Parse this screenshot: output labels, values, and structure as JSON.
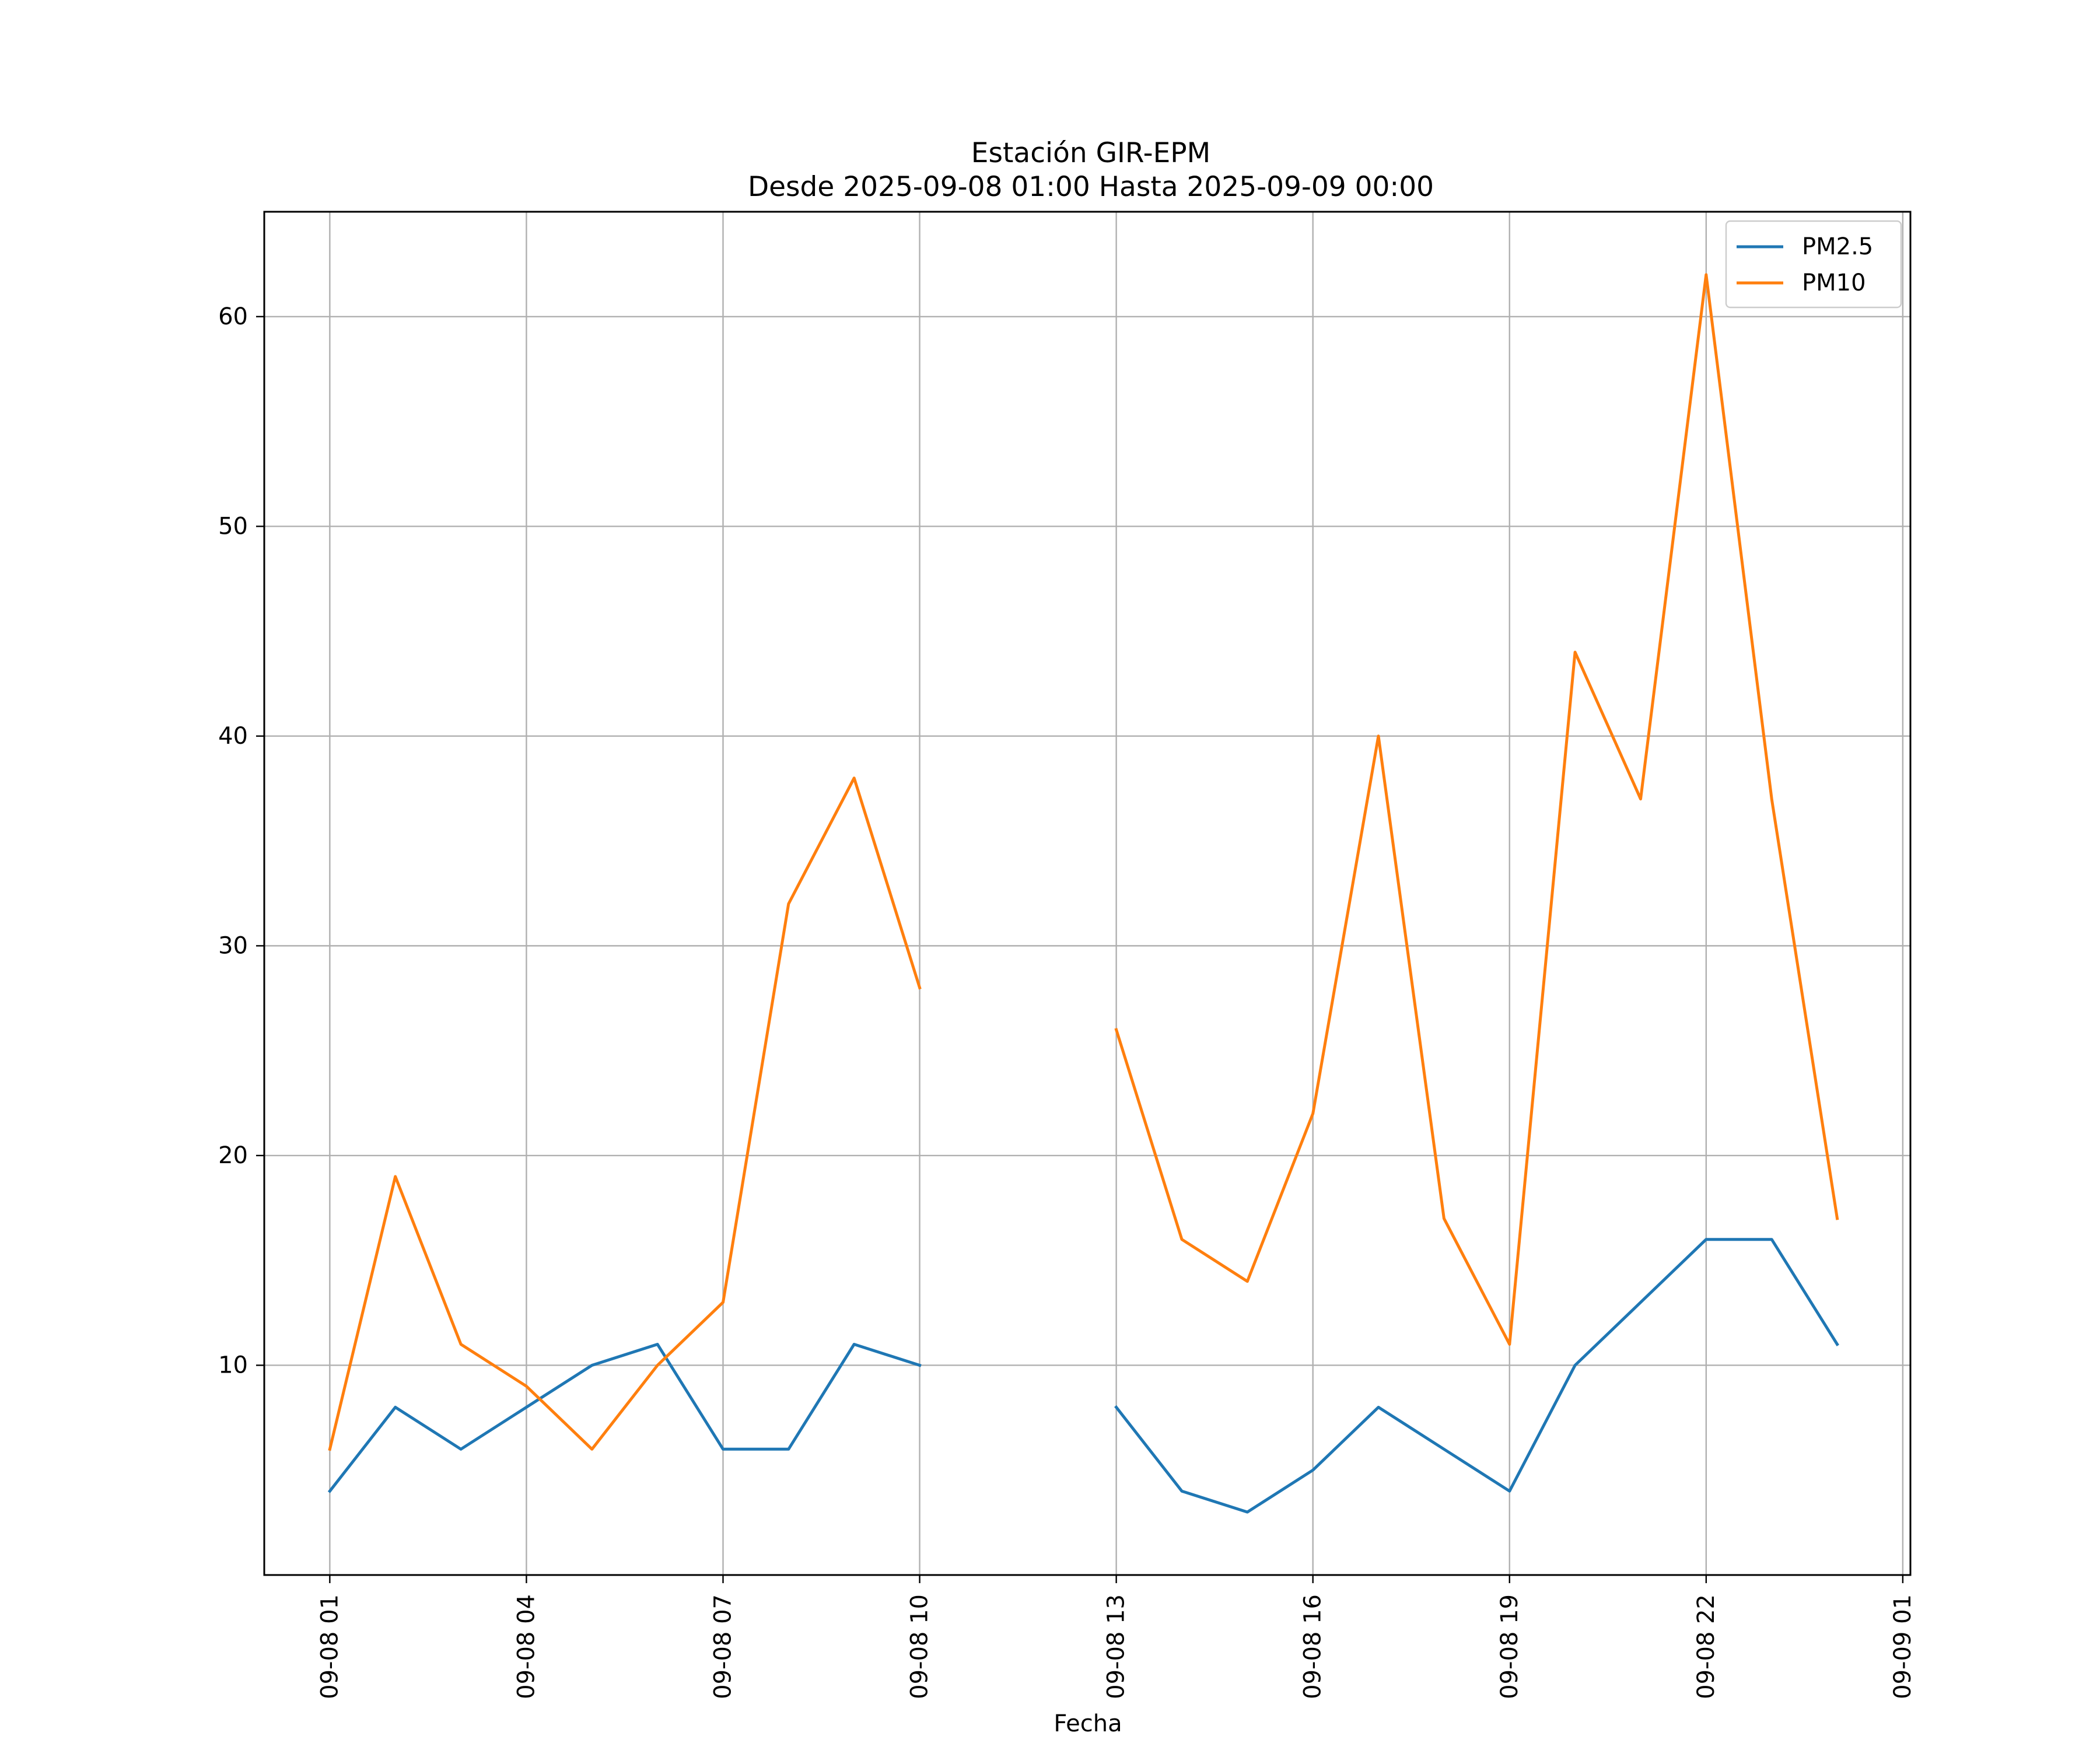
{
  "chart_data": {
    "type": "line",
    "title": "Estación GIR-EPM",
    "subtitle": "Desde 2025-09-08 01:00 Hasta 2025-09-09 00:00",
    "xlabel": "Fecha",
    "ylabel": "",
    "x": [
      "2025-09-08 01:00",
      "2025-09-08 02:00",
      "2025-09-08 03:00",
      "2025-09-08 04:00",
      "2025-09-08 05:00",
      "2025-09-08 06:00",
      "2025-09-08 07:00",
      "2025-09-08 08:00",
      "2025-09-08 09:00",
      "2025-09-08 10:00",
      "2025-09-08 11:00",
      "2025-09-08 12:00",
      "2025-09-08 13:00",
      "2025-09-08 14:00",
      "2025-09-08 15:00",
      "2025-09-08 16:00",
      "2025-09-08 17:00",
      "2025-09-08 18:00",
      "2025-09-08 19:00",
      "2025-09-08 20:00",
      "2025-09-08 21:00",
      "2025-09-08 22:00",
      "2025-09-08 23:00",
      "2025-09-09 00:00"
    ],
    "xlim": [
      "2025-09-08 00:00",
      "2025-09-09 01:07"
    ],
    "xticks": [
      {
        "x": "2025-09-08 01:00",
        "label": "09-08 01"
      },
      {
        "x": "2025-09-08 04:00",
        "label": "09-08 04"
      },
      {
        "x": "2025-09-08 07:00",
        "label": "09-08 07"
      },
      {
        "x": "2025-09-08 10:00",
        "label": "09-08 10"
      },
      {
        "x": "2025-09-08 13:00",
        "label": "09-08 13"
      },
      {
        "x": "2025-09-08 16:00",
        "label": "09-08 16"
      },
      {
        "x": "2025-09-08 19:00",
        "label": "09-08 19"
      },
      {
        "x": "2025-09-08 22:00",
        "label": "09-08 22"
      },
      {
        "x": "2025-09-09 01:00",
        "label": "09-09 01"
      }
    ],
    "ylim": [
      0,
      65
    ],
    "yticks": [
      10,
      20,
      30,
      40,
      50,
      60
    ],
    "grid": true,
    "legend_position": "top-right",
    "series": [
      {
        "name": "PM2.5",
        "color": "#1f77b4",
        "values": [
          4,
          8,
          6,
          8,
          10,
          11,
          6,
          6,
          11,
          10,
          null,
          null,
          8,
          4,
          3,
          5,
          8,
          6,
          4,
          10,
          13,
          16,
          16,
          11
        ]
      },
      {
        "name": "PM10",
        "color": "#ff7f0e",
        "values": [
          6,
          19,
          11,
          9,
          6,
          10,
          13,
          32,
          38,
          28,
          null,
          null,
          26,
          16,
          14,
          22,
          40,
          17,
          11,
          44,
          37,
          62,
          37,
          17
        ]
      }
    ]
  }
}
